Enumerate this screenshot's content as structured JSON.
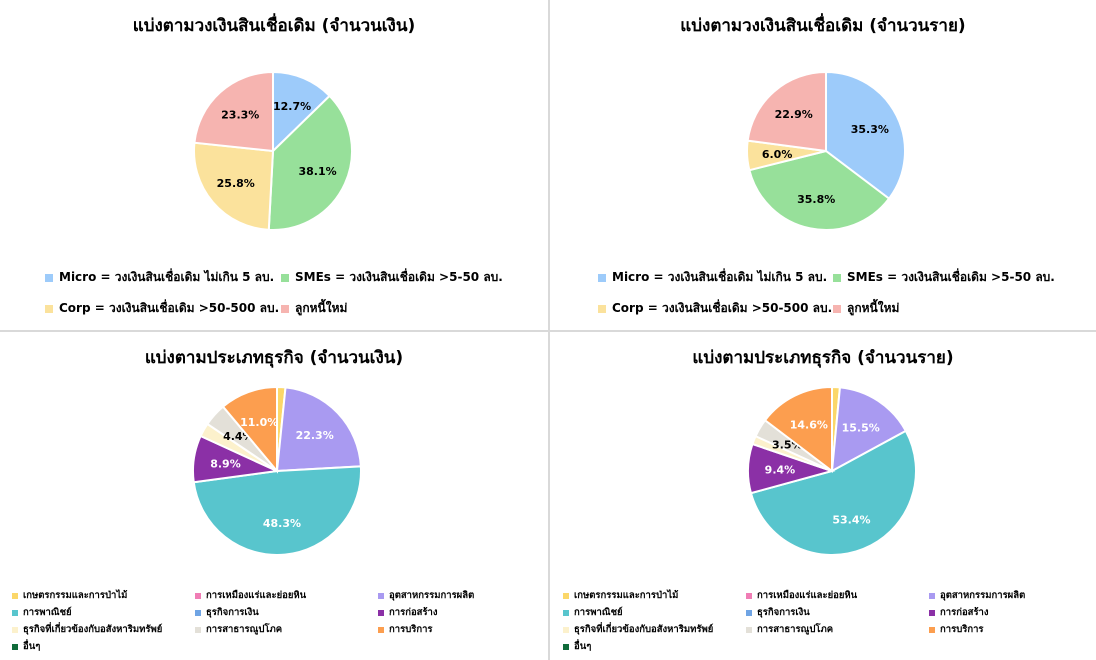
{
  "chart_data": [
    {
      "type": "pie",
      "title": "แบ่งตามวงเงินสินเชื่อเดิม (จำนวนเงิน)",
      "legend": [
        {
          "label": "Micro = วงเงินสินเชื่อเดิม ไม่เกิน 5 ลบ.",
          "color": "#9dcbfa"
        },
        {
          "label": "SMEs = วงเงินสินเชื่อเดิม >5-50 ลบ.",
          "color": "#97e09a"
        },
        {
          "label": "Corp = วงเงินสินเชื่อเดิม >50-500 ลบ.",
          "color": "#fbe29c"
        },
        {
          "label": "ลูกหนี้ใหม่",
          "color": "#f6b4b0"
        }
      ],
      "slices": [
        {
          "name": "Micro = วงเงินสินเชื่อเดิม ไม่เกิน 5 ลบ.",
          "value": 12.7,
          "label": "12.7%",
          "color": "#9dcbfa"
        },
        {
          "name": "SMEs = วงเงินสินเชื่อเดิม >5-50 ลบ.",
          "value": 38.1,
          "label": "38.1%",
          "color": "#97e09a"
        },
        {
          "name": "Corp = วงเงินสินเชื่อเดิม >50-500 ลบ.",
          "value": 25.8,
          "label": "25.8%",
          "color": "#fbe29c"
        },
        {
          "name": "ลูกหนี้ใหม่",
          "value": 23.3,
          "label": "23.3%",
          "color": "#f6b4b0"
        }
      ]
    },
    {
      "type": "pie",
      "title": "แบ่งตามวงเงินสินเชื่อเดิม (จำนวนราย)",
      "legend": [
        {
          "label": "Micro = วงเงินสินเชื่อเดิม ไม่เกิน 5 ลบ.",
          "color": "#9dcbfa"
        },
        {
          "label": "SMEs = วงเงินสินเชื่อเดิม >5-50 ลบ.",
          "color": "#97e09a"
        },
        {
          "label": "Corp = วงเงินสินเชื่อเดิม >50-500 ลบ.",
          "color": "#fbe29c"
        },
        {
          "label": "ลูกหนี้ใหม่",
          "color": "#f6b4b0"
        }
      ],
      "slices": [
        {
          "name": "Micro = วงเงินสินเชื่อเดิม ไม่เกิน 5 ลบ.",
          "value": 35.3,
          "label": "35.3%",
          "color": "#9dcbfa"
        },
        {
          "name": "SMEs = วงเงินสินเชื่อเดิม >5-50 ลบ.",
          "value": 35.8,
          "label": "35.8%",
          "color": "#97e09a"
        },
        {
          "name": "Corp = วงเงินสินเชื่อเดิม >50-500 ลบ.",
          "value": 6.0,
          "label": "6.0%",
          "color": "#fbe29c"
        },
        {
          "name": "ลูกหนี้ใหม่",
          "value": 22.9,
          "label": "22.9%",
          "color": "#f6b4b0"
        }
      ]
    },
    {
      "type": "pie",
      "title": "แบ่งตามประเภทธุรกิจ (จำนวนเงิน)",
      "legend": [
        {
          "label": "เกษตรกรรมและการป่าไม้",
          "color": "#fbd769"
        },
        {
          "label": "การเหมืองแร่และย่อยหิน",
          "color": "#f07db5"
        },
        {
          "label": "อุตสาหกรรมการผลิต",
          "color": "#a99af1"
        },
        {
          "label": "การพาณิชย์",
          "color": "#58c5cd"
        },
        {
          "label": "ธุรกิจการเงิน",
          "color": "#6fa4e4"
        },
        {
          "label": "การก่อสร้าง",
          "color": "#8b30a6"
        },
        {
          "label": "ธุรกิจที่เกี่ยวข้องกับอสังหาริมทรัพย์",
          "color": "#fcf1cc"
        },
        {
          "label": "การสาธารณูปโภค",
          "color": "#e3e0d8"
        },
        {
          "label": "การบริการ",
          "color": "#fc9e4f"
        },
        {
          "label": "อื่นๆ",
          "color": "#0f6b3a"
        }
      ],
      "slices": [
        {
          "name": "เกษตรกรรมและการป่าไม้",
          "value": 1.6,
          "label": "",
          "color": "#fbd769"
        },
        {
          "name": "อุตสาหกรรมการผลิต",
          "value": 22.3,
          "label": "22.3%",
          "color": "#a99af1"
        },
        {
          "name": "การพาณิชย์",
          "value": 48.3,
          "label": "48.3%",
          "color": "#58c5cd"
        },
        {
          "name": "การก่อสร้าง",
          "value": 8.9,
          "label": "8.9%",
          "color": "#8b30a6"
        },
        {
          "name": "ธุรกิจที่เกี่ยวข้องกับอสังหาริมทรัพย์",
          "value": 2.6,
          "label": "",
          "color": "#fcf1cc"
        },
        {
          "name": "การสาธารณูปโภค",
          "value": 4.4,
          "label": "4.4%",
          "color": "#e3e0d8"
        },
        {
          "name": "การบริการ",
          "value": 11.0,
          "label": "11.0%",
          "color": "#fc9e4f"
        }
      ]
    },
    {
      "type": "pie",
      "title": "แบ่งตามประเภทธุรกิจ (จำนวนราย)",
      "legend": [
        {
          "label": "เกษตรกรรมและการป่าไม้",
          "color": "#fbd769"
        },
        {
          "label": "การเหมืองแร่และย่อยหิน",
          "color": "#f07db5"
        },
        {
          "label": "อุตสาหกรรมการผลิต",
          "color": "#a99af1"
        },
        {
          "label": "การพาณิชย์",
          "color": "#58c5cd"
        },
        {
          "label": "ธุรกิจการเงิน",
          "color": "#6fa4e4"
        },
        {
          "label": "การก่อสร้าง",
          "color": "#8b30a6"
        },
        {
          "label": "ธุรกิจที่เกี่ยวข้องกับอสังหาริมทรัพย์",
          "color": "#fcf1cc"
        },
        {
          "label": "การสาธารณูปโภค",
          "color": "#e3e0d8"
        },
        {
          "label": "การบริการ",
          "color": "#fc9e4f"
        },
        {
          "label": "อื่นๆ",
          "color": "#0f6b3a"
        }
      ],
      "slices": [
        {
          "name": "เกษตรกรรมและการป่าไม้",
          "value": 1.5,
          "label": "",
          "color": "#fbd769"
        },
        {
          "name": "อุตสาหกรรมการผลิต",
          "value": 15.5,
          "label": "15.5%",
          "color": "#a99af1"
        },
        {
          "name": "การพาณิชย์",
          "value": 53.4,
          "label": "53.4%",
          "color": "#58c5cd"
        },
        {
          "name": "การก่อสร้าง",
          "value": 9.4,
          "label": "9.4%",
          "color": "#8b30a6"
        },
        {
          "name": "ธุรกิจที่เกี่ยวข้องกับอสังหาริมทรัพย์",
          "value": 1.6,
          "label": "",
          "color": "#fcf1cc"
        },
        {
          "name": "การสาธารณูปโภค",
          "value": 3.5,
          "label": "3.5%",
          "color": "#e3e0d8"
        },
        {
          "name": "การบริการ",
          "value": 14.6,
          "label": "14.6%",
          "color": "#fc9e4f"
        }
      ]
    }
  ]
}
